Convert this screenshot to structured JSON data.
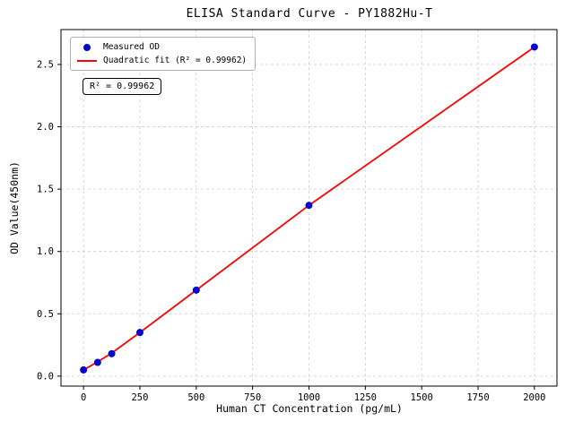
{
  "chart_data": {
    "type": "scatter",
    "title": "ELISA Standard Curve - PY1882Hu-T",
    "xlabel": "Human CT Concentration (pg/mL)",
    "ylabel": "OD Value(450nm)",
    "xlim": [
      -100,
      2100
    ],
    "ylim": [
      -0.08,
      2.78
    ],
    "x_ticks": [
      0,
      250,
      500,
      750,
      1000,
      1250,
      1500,
      1750,
      2000
    ],
    "y_ticks": [
      0.0,
      0.5,
      1.0,
      1.5,
      2.0,
      2.5
    ],
    "grid": true,
    "grid_style": "dashed",
    "grid_color": "#cccccc",
    "legend_position": "upper-left",
    "annotation": "R² = 0.99962",
    "series": [
      {
        "name": "Measured OD",
        "type": "scatter",
        "color": "#0000cd",
        "x": [
          0,
          62.5,
          125,
          250,
          500,
          1000,
          2000
        ],
        "y": [
          0.05,
          0.11,
          0.18,
          0.35,
          0.69,
          1.37,
          2.64
        ]
      },
      {
        "name": "Quadratic fit (R² = 0.99962)",
        "type": "line",
        "color": "#ff0000",
        "x": [
          0,
          62.5,
          125,
          250,
          500,
          1000,
          2000
        ],
        "y": [
          0.05,
          0.115,
          0.185,
          0.35,
          0.69,
          1.37,
          2.64
        ]
      }
    ]
  }
}
